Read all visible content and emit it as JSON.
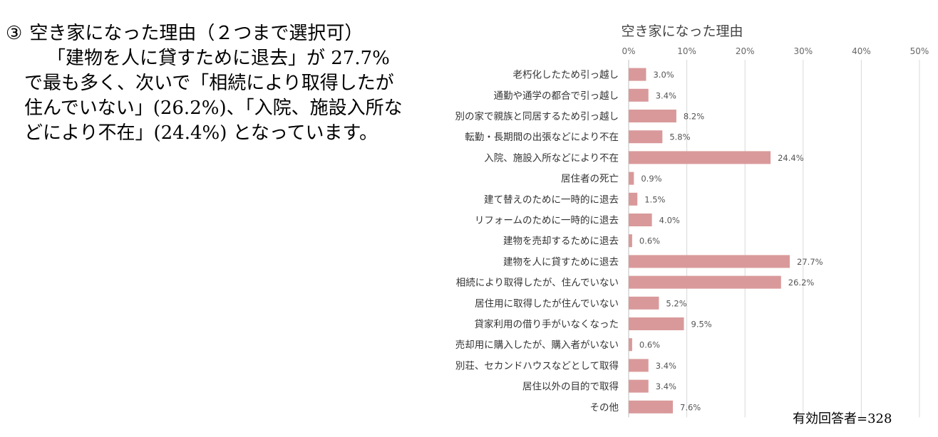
{
  "text": {
    "heading_marker": "③",
    "heading": "空き家になった理由（２つまで選択可）",
    "paragraph": "「建物を人に貸すために退去」が 27.7% で最も多く、次いで「相続により取得したが住んでいない」(26.2%)、「入院、施設入所などにより不在」(24.4%) となっています。"
  },
  "chart_data": {
    "type": "bar",
    "orientation": "horizontal",
    "title": "空き家になった理由",
    "x_ticks": [
      "0%",
      "10%",
      "20%",
      "30%",
      "40%",
      "50%"
    ],
    "xlim": [
      0,
      50
    ],
    "grid": true,
    "unit": "%",
    "categories": [
      "老朽化したため引っ越し",
      "通勤や通学の都合で引っ越し",
      "別の家で親族と同居するため引っ越し",
      "転勤・長期間の出張などにより不在",
      "入院、施設入所などにより不在",
      "居住者の死亡",
      "建て替えのために一時的に退去",
      "リフォームのために一時的に退去",
      "建物を売却するために退去",
      "建物を人に貸すために退去",
      "相続により取得したが、住んでいない",
      "居住用に取得したが住んでいない",
      "貸家利用の借り手がいなくなった",
      "売却用に購入したが、購入者がいない",
      "別荘、セカンドハウスなどとして取得",
      "居住以外の目的で取得",
      "その他"
    ],
    "values": [
      3.0,
      3.4,
      8.2,
      5.8,
      24.4,
      0.9,
      1.5,
      4.0,
      0.6,
      27.7,
      26.2,
      5.2,
      9.5,
      0.6,
      3.4,
      3.4,
      7.6
    ],
    "value_labels": [
      "3.0%",
      "3.4%",
      "8.2%",
      "5.8%",
      "24.4%",
      "0.9%",
      "1.5%",
      "4.0%",
      "0.6%",
      "27.7%",
      "26.2%",
      "5.2%",
      "9.5%",
      "0.6%",
      "3.4%",
      "3.4%",
      "7.6%"
    ],
    "bar_color": "#d9999a",
    "note": "有効回答者=328"
  }
}
